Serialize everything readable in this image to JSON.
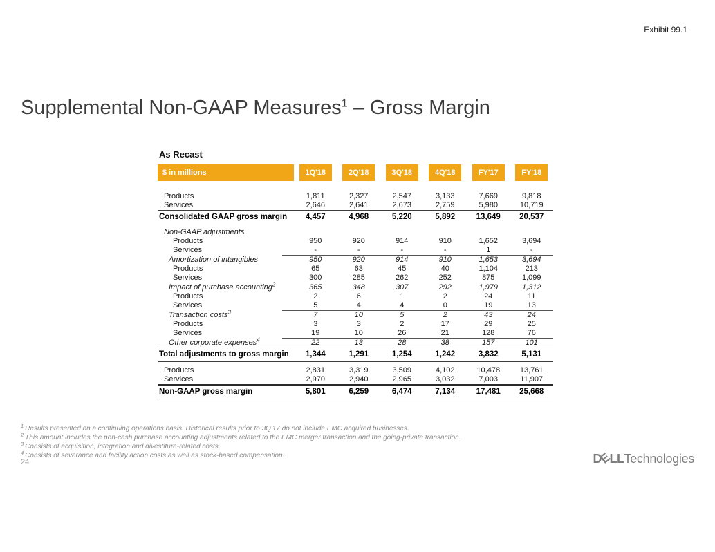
{
  "header": {
    "exhibit": "Exhibit 99.1",
    "title_pre": "Supplemental Non-GAAP Measures",
    "title_sup": "1",
    "title_post": " – Gross Margin"
  },
  "table": {
    "caption": "As Recast",
    "units_label": "$ in millions",
    "header_bg": "#F0A616",
    "columns": [
      "1Q'18",
      "2Q'18",
      "3Q'18",
      "4Q'18",
      "FY'17",
      "FY'18"
    ],
    "rows": [
      {
        "label": "Products",
        "style": "plain",
        "indent": 1,
        "values": [
          "1,811",
          "2,327",
          "2,547",
          "3,133",
          "7,669",
          "9,818"
        ]
      },
      {
        "label": "Services",
        "style": "plain",
        "indent": 1,
        "values": [
          "2,646",
          "2,641",
          "2,673",
          "2,759",
          "5,980",
          "10,719"
        ]
      },
      {
        "label": "Consolidated GAAP gross margin",
        "style": "bold",
        "indent": 0,
        "rule_above": "full",
        "values": [
          "4,457",
          "4,968",
          "5,220",
          "5,892",
          "13,649",
          "20,537"
        ]
      },
      {
        "label": "Non-GAAP adjustments",
        "style": "italic",
        "indent": 1,
        "gap_above": true,
        "values": []
      },
      {
        "label": "Products",
        "style": "plain",
        "indent": 3,
        "values": [
          "950",
          "920",
          "914",
          "910",
          "1,652",
          "3,694"
        ]
      },
      {
        "label": "Services",
        "style": "plain",
        "indent": 3,
        "values": [
          "-",
          "-",
          "-",
          "-",
          "1",
          "-"
        ]
      },
      {
        "label": "Amortization of intangibles",
        "style": "italic",
        "indent": 2,
        "rule_above": "partial",
        "values": [
          "950",
          "920",
          "914",
          "910",
          "1,653",
          "3,694"
        ]
      },
      {
        "label": "Products",
        "style": "plain",
        "indent": 3,
        "values": [
          "65",
          "63",
          "45",
          "40",
          "1,104",
          "213"
        ]
      },
      {
        "label": "Services",
        "style": "plain",
        "indent": 3,
        "values": [
          "300",
          "285",
          "262",
          "252",
          "875",
          "1,099"
        ]
      },
      {
        "label": "Impact of purchase accounting",
        "sup": "2",
        "style": "italic",
        "indent": 2,
        "rule_above": "partial",
        "values": [
          "365",
          "348",
          "307",
          "292",
          "1,979",
          "1,312"
        ]
      },
      {
        "label": "Products",
        "style": "plain",
        "indent": 3,
        "values": [
          "2",
          "6",
          "1",
          "2",
          "24",
          "11"
        ]
      },
      {
        "label": "Services",
        "style": "plain",
        "indent": 3,
        "values": [
          "5",
          "4",
          "4",
          "0",
          "19",
          "13"
        ]
      },
      {
        "label": "Transaction costs",
        "sup": "3",
        "style": "italic",
        "indent": 2,
        "rule_above": "partial",
        "values": [
          "7",
          "10",
          "5",
          "2",
          "43",
          "24"
        ]
      },
      {
        "label": "Products",
        "style": "plain",
        "indent": 3,
        "values": [
          "3",
          "3",
          "2",
          "17",
          "29",
          "25"
        ]
      },
      {
        "label": "Services",
        "style": "plain",
        "indent": 3,
        "values": [
          "19",
          "10",
          "26",
          "21",
          "128",
          "76"
        ]
      },
      {
        "label": "Other corporate expenses",
        "sup": "4",
        "style": "italic",
        "indent": 2,
        "rule_above": "partial",
        "values": [
          "22",
          "13",
          "28",
          "38",
          "157",
          "101"
        ]
      },
      {
        "label": "Total adjustments to gross margin",
        "style": "bold",
        "indent": 0,
        "rule_above": "full",
        "rule_below": "below",
        "values": [
          "1,344",
          "1,291",
          "1,254",
          "1,242",
          "3,832",
          "5,131"
        ]
      },
      {
        "label": "Products",
        "style": "plain",
        "indent": 1,
        "gap_above": true,
        "values": [
          "2,831",
          "3,319",
          "3,509",
          "4,102",
          "10,478",
          "13,761"
        ]
      },
      {
        "label": "Services",
        "style": "plain",
        "indent": 1,
        "values": [
          "2,970",
          "2,940",
          "2,965",
          "3,032",
          "7,003",
          "11,907"
        ]
      },
      {
        "label": "Non-GAAP gross margin",
        "style": "bold",
        "indent": 0,
        "rule_above": "heavy",
        "rule_below": "below",
        "values": [
          "5,801",
          "6,259",
          "6,474",
          "7,134",
          "17,481",
          "25,668"
        ]
      }
    ]
  },
  "footnotes": [
    {
      "sup": "1",
      "text": "Results presented on a continuing operations basis. Historical results prior to 3Q'17 do not include EMC acquired businesses."
    },
    {
      "sup": "2",
      "text": "This amount includes the non-cash purchase accounting adjustments related to the EMC merger transaction and the going-private transaction."
    },
    {
      "sup": "3",
      "text": "Consists of acquisition, integration and divestiture-related costs."
    },
    {
      "sup": "4",
      "text": "Consists of severance and facility action costs as well as stock-based compensation."
    }
  ],
  "footer": {
    "page_number": "24"
  },
  "logo": {
    "d": "D",
    "e": "E",
    "ll": "LL",
    "suffix": "Technologies"
  }
}
